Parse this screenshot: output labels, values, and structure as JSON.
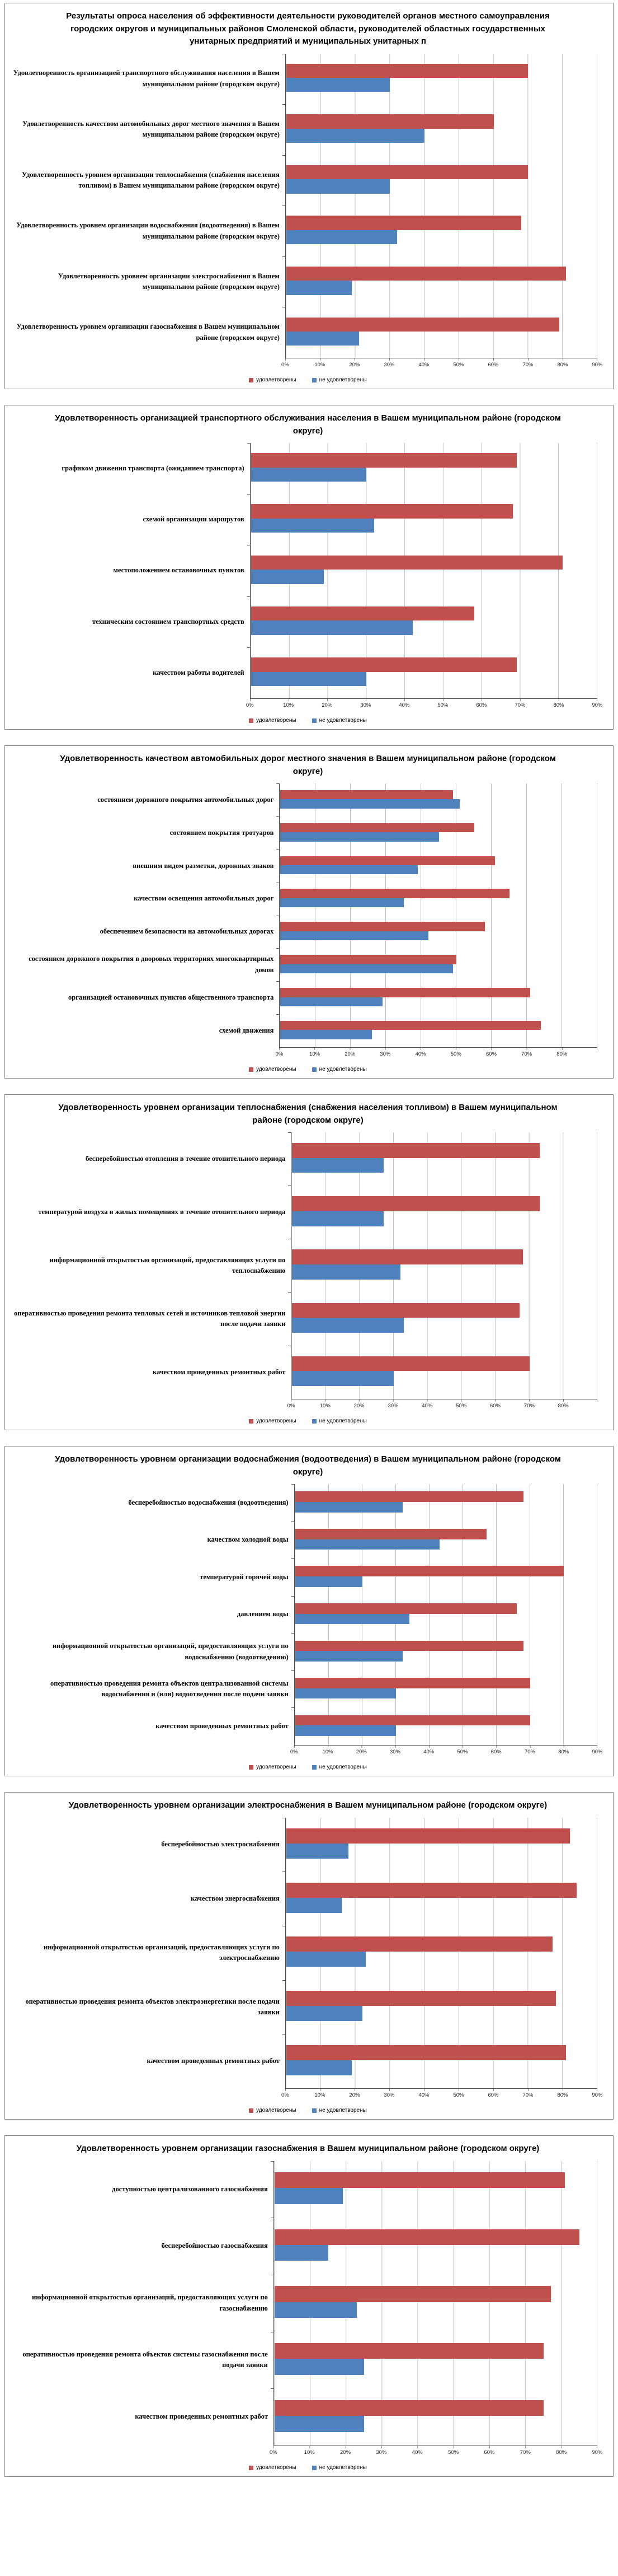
{
  "report": {
    "background": "#ffffff"
  },
  "colors": {
    "satisfied": "#c0504d",
    "not_satisfied": "#4f81bd",
    "gridline": "#bfbfbf",
    "box_border": "#7f7f7f",
    "axis": "#4d4d4d"
  },
  "chart_data": [
    {
      "type": "bar",
      "orientation": "horizontal",
      "title": "Результаты опроса населения об эффективности деятельности руководителей органов местного самоуправления городских округов и муниципальных районов Смоленской области, руководителей областных государственных унитарных предприятий и муниципальных унитарных п",
      "categories": [
        "Удовлетворенность организацией транспортного обслуживания населения в Вашем муниципальном районе (городском округе)",
        "Удовлетворенность качеством автомобильных дорог местного значения в Вашем муниципальном районе (городском округе)",
        "Удовлетворенность уровнем организации теплоснабжения (снабжения населения топливом) в Вашем муниципальном районе (городском округе)",
        "Удовлетворенность уровнем организации водоснабжения (водоотведения) в Вашем муниципальном районе (городском округе)",
        "Удовлетворенность уровнем организации электроснабжения в Вашем муниципальном районе (городском округе)",
        "Удовлетворенность уровнем организации газоснабжения в Вашем муниципальном районе (городском округе)"
      ],
      "series": [
        {
          "name": "удовлетворены",
          "color": "#c0504d",
          "values": [
            70,
            60,
            70,
            68,
            81,
            79
          ]
        },
        {
          "name": "не удовлетворены",
          "color": "#4f81bd",
          "values": [
            30,
            40,
            30,
            32,
            19,
            21
          ]
        }
      ],
      "xlim": [
        0,
        90
      ],
      "xtick_step": 10,
      "xtick_labels": [
        "0%",
        "10%",
        "20%",
        "30%",
        "40%",
        "50%",
        "60%",
        "70%",
        "80%",
        "90%"
      ],
      "grid": "vertical",
      "legend_position": "bottom"
    },
    {
      "type": "bar",
      "orientation": "horizontal",
      "title": "Удовлетворенность организацией транспортного обслуживания населения в Вашем муниципальном районе (городском округе)",
      "categories": [
        "графиком движения транспорта (ожиданием транспорта)",
        "схемой организации маршрутов",
        "местоположением остановочных пунктов",
        "техническим состоянием транспортных средств",
        "качеством работы водителей"
      ],
      "series": [
        {
          "name": "удовлетворены",
          "color": "#c0504d",
          "values": [
            69,
            68,
            81,
            58,
            69
          ]
        },
        {
          "name": "не удовлетворены",
          "color": "#4f81bd",
          "values": [
            30,
            32,
            19,
            42,
            30
          ]
        }
      ],
      "xlim": [
        0,
        90
      ],
      "xtick_step": 10,
      "xtick_labels": [
        "0%",
        "10%",
        "20%",
        "30%",
        "40%",
        "50%",
        "60%",
        "70%",
        "80%",
        "90%"
      ],
      "grid": "vertical",
      "legend_position": "bottom"
    },
    {
      "type": "bar",
      "orientation": "horizontal",
      "title": "Удовлетворенность качеством автомобильных дорог местного значения в Вашем муниципальном районе (городском округе)",
      "categories": [
        "состоянием дорожного покрытия автомобильных дорог",
        "состоянием покрытия тротуаров",
        "внешним видом разметки, дорожных знаков",
        "качеством освещения автомобильных дорог",
        "обеспечением безопасности на автомобильных дорогах",
        "состоянием дорожного покрытия в дворовых территориях многоквартирных домов",
        "организацией остановочных пунктов общественного транспорта",
        "схемой движения"
      ],
      "series": [
        {
          "name": "удовлетворены",
          "color": "#c0504d",
          "values": [
            49,
            55,
            61,
            65,
            58,
            50,
            71,
            74
          ]
        },
        {
          "name": "не удовлетворены",
          "color": "#4f81bd",
          "values": [
            51,
            45,
            39,
            35,
            42,
            49,
            29,
            26
          ]
        }
      ],
      "xlim": [
        0,
        90
      ],
      "xtick_step": 10,
      "xtick_labels": [
        "0%",
        "10%",
        "20%",
        "30%",
        "40%",
        "50%",
        "60%",
        "70%",
        "80%"
      ],
      "grid": "vertical",
      "legend_position": "bottom"
    },
    {
      "type": "bar",
      "orientation": "horizontal",
      "title": "Удовлетворенность уровнем организации теплоснабжения (снабжения населения топливом) в Вашем муниципальном районе (городском округе)",
      "categories": [
        "бесперебойностью отопления в течение отопительного периода",
        "температурой воздуха в жилых помещениях в течение отопительного периода",
        "информационной открытостью организаций, предоставляющих услуги по теплоснабжению",
        "оперативностью проведения ремонта тепловых сетей и источников тепловой энергии после подачи заявки",
        "качеством проведенных ремонтных работ"
      ],
      "series": [
        {
          "name": "удовлетворены",
          "color": "#c0504d",
          "values": [
            73,
            73,
            68,
            67,
            70
          ]
        },
        {
          "name": "не удовлетворены",
          "color": "#4f81bd",
          "values": [
            27,
            27,
            32,
            33,
            30
          ]
        }
      ],
      "xlim": [
        0,
        90
      ],
      "xtick_step": 10,
      "xtick_labels": [
        "0%",
        "10%",
        "20%",
        "30%",
        "40%",
        "50%",
        "60%",
        "70%",
        "80%"
      ],
      "grid": "vertical",
      "legend_position": "bottom"
    },
    {
      "type": "bar",
      "orientation": "horizontal",
      "title": "Удовлетворенность уровнем организации водоснабжения (водоотведения) в Вашем муниципальном районе (городском округе)",
      "categories": [
        "бесперебойностью водоснабжения (водоотведения)",
        "качеством холодной воды",
        "температурой горячей воды",
        "давлением воды",
        "информационной открытостью организаций, предоставляющих услуги по водоснабжению (водоотведению)",
        "оперативностью проведения ремонта объектов централизованной системы водоснабжения и (или) водоотведения после подачи заявки",
        "качеством проведенных ремонтных работ"
      ],
      "series": [
        {
          "name": "удовлетворены",
          "color": "#c0504d",
          "values": [
            68,
            57,
            80,
            66,
            68,
            70,
            70
          ]
        },
        {
          "name": "не удовлетворены",
          "color": "#4f81bd",
          "values": [
            32,
            43,
            20,
            34,
            32,
            30,
            30
          ]
        }
      ],
      "xlim": [
        0,
        90
      ],
      "xtick_step": 10,
      "xtick_labels": [
        "0%",
        "10%",
        "20%",
        "30%",
        "40%",
        "50%",
        "60%",
        "70%",
        "80%",
        "90%"
      ],
      "grid": "vertical",
      "legend_position": "bottom"
    },
    {
      "type": "bar",
      "orientation": "horizontal",
      "title": "Удовлетворенность уровнем организации электроснабжения в Вашем муниципальном районе (городском округе)",
      "categories": [
        "бесперебойностью электроснабжения",
        "качеством энергоснабжения",
        "информационной открытостью организаций, предоставляющих услуги по электроснабжению",
        "оперативностью проведения ремонта объектов электроэнергетики после подачи заявки",
        "качеством проведенных ремонтных работ"
      ],
      "series": [
        {
          "name": "удовлетворены",
          "color": "#c0504d",
          "values": [
            82,
            84,
            77,
            78,
            81
          ]
        },
        {
          "name": "не удовлетворены",
          "color": "#4f81bd",
          "values": [
            18,
            16,
            23,
            22,
            19
          ]
        }
      ],
      "xlim": [
        0,
        90
      ],
      "xtick_step": 10,
      "xtick_labels": [
        "0%",
        "10%",
        "20%",
        "30%",
        "40%",
        "50%",
        "60%",
        "70%",
        "80%",
        "90%"
      ],
      "grid": "vertical",
      "legend_position": "bottom"
    },
    {
      "type": "bar",
      "orientation": "horizontal",
      "title": "Удовлетворенность уровнем организации газоснабжения в Вашем муниципальном районе (городском округе)",
      "categories": [
        "доступностью централизованного газоснабжения",
        "бесперебойностью газоснабжения",
        "информационной открытостью организаций, предоставляющих услуги по газоснабжению",
        "оперативностью проведения ремонта объектов системы газоснабжения после подачи заявки",
        "качеством проведенных ремонтных работ"
      ],
      "series": [
        {
          "name": "удовлетворены",
          "color": "#c0504d",
          "values": [
            81,
            85,
            77,
            75,
            75
          ]
        },
        {
          "name": "не удовлетворены",
          "color": "#4f81bd",
          "values": [
            19,
            15,
            23,
            25,
            25
          ]
        }
      ],
      "xlim": [
        0,
        90
      ],
      "xtick_step": 10,
      "xtick_labels": [
        "0%",
        "10%",
        "20%",
        "30%",
        "40%",
        "50%",
        "60%",
        "70%",
        "80%",
        "90%"
      ],
      "grid": "vertical",
      "legend_position": "bottom"
    }
  ]
}
